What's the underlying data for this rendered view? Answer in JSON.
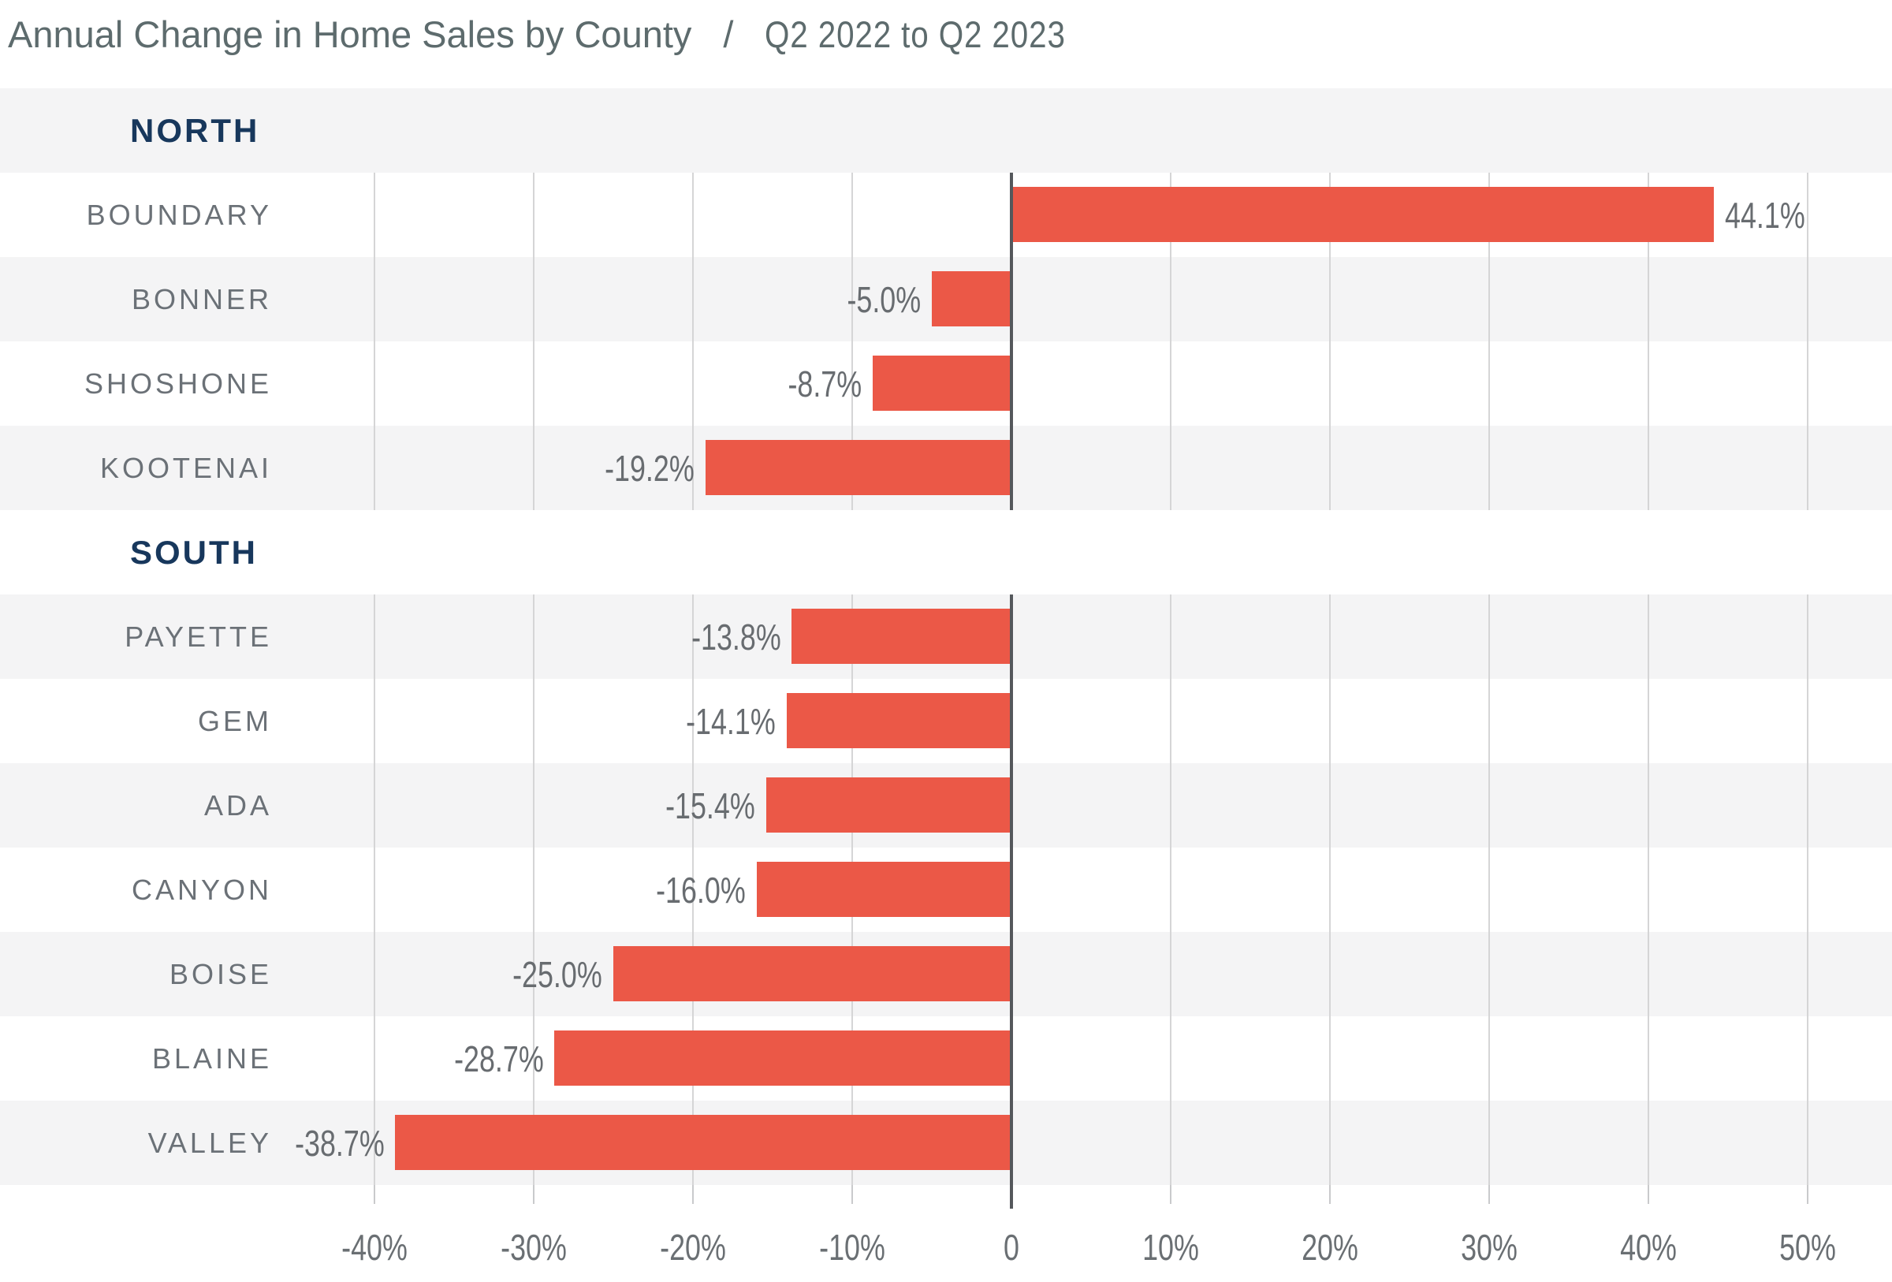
{
  "title": {
    "main": "Annual Change in Home Sales by County",
    "separator": "/",
    "range": "Q2 2022 to Q2 2023"
  },
  "chart_data": {
    "type": "bar",
    "orientation": "horizontal",
    "unit": "%",
    "title": "Annual Change in Home Sales by County / Q2 2022 to Q2 2023",
    "xlabel": "",
    "ylabel": "",
    "xlim": [
      -45,
      55
    ],
    "grid": "vertical-only",
    "legend": "none",
    "axis": {
      "ticks": [
        -40,
        -30,
        -20,
        -10,
        0,
        10,
        20,
        30,
        40,
        50
      ],
      "tick_labels": [
        "-40%",
        "-30%",
        "-20%",
        "-10%",
        "0",
        "10%",
        "20%",
        "30%",
        "40%",
        "50%"
      ]
    },
    "groups": [
      {
        "label": "NORTH",
        "rows": [
          {
            "county": "BOUNDARY",
            "value": 44.1,
            "display": "44.1%"
          },
          {
            "county": "BONNER",
            "value": -5.0,
            "display": "-5.0%"
          },
          {
            "county": "SHOSHONE",
            "value": -8.7,
            "display": "-8.7%"
          },
          {
            "county": "KOOTENAI",
            "value": -19.2,
            "display": "-19.2%"
          }
        ]
      },
      {
        "label": "SOUTH",
        "rows": [
          {
            "county": "PAYETTE",
            "value": -13.8,
            "display": "-13.8%"
          },
          {
            "county": "GEM",
            "value": -14.1,
            "display": "-14.1%"
          },
          {
            "county": "ADA",
            "value": -15.4,
            "display": "-15.4%"
          },
          {
            "county": "CANYON",
            "value": -16.0,
            "display": "-16.0%"
          },
          {
            "county": "BOISE",
            "value": -25.0,
            "display": "-25.0%"
          },
          {
            "county": "BLAINE",
            "value": -28.7,
            "display": "-28.7%"
          },
          {
            "county": "VALLEY",
            "value": -38.7,
            "display": "-38.7%"
          }
        ]
      }
    ]
  },
  "colors": {
    "bar": "#eb5847",
    "band_stripe": "#f4f4f5",
    "band_white": "#ffffff",
    "gridline": "#d5d5d6",
    "zero_axis": "#55585c",
    "tick": "#c9cacc",
    "group_header_text": "#17375c",
    "county_label_text": "#6b7177",
    "value_label_text": "#686c70",
    "axis_label_text": "#6a6f73",
    "title_text": "#5d6b6d"
  }
}
